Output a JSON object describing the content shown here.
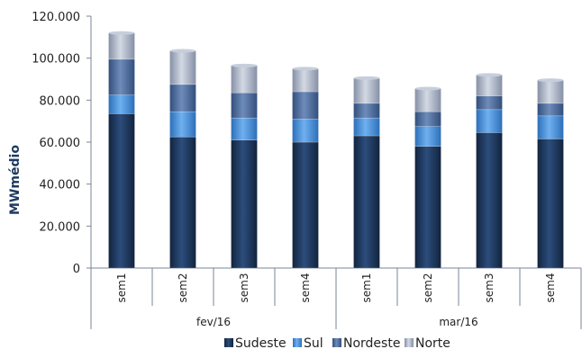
{
  "chart_data": {
    "type": "bar",
    "stacked": true,
    "ylabel": "MWmédio",
    "ylim": [
      0,
      120000
    ],
    "yticks": [
      "0",
      "20.000",
      "40.000",
      "60.000",
      "80.000",
      "100.000",
      "120.000"
    ],
    "ytick_values": [
      0,
      20000,
      40000,
      60000,
      80000,
      100000,
      120000
    ],
    "categories": [
      "sem1",
      "sem2",
      "sem3",
      "sem4",
      "sem1",
      "sem2",
      "sem3",
      "sem4"
    ],
    "groups": [
      {
        "label": "fev/16",
        "count": 4
      },
      {
        "label": "mar/16",
        "count": 4
      }
    ],
    "series": [
      {
        "name": "Sudeste",
        "color": "#1f3a60",
        "values": [
          73500,
          62500,
          61000,
          60000,
          63000,
          58000,
          64500,
          61500
        ]
      },
      {
        "name": "Sul",
        "color": "#4a90d9",
        "values": [
          9000,
          12000,
          10500,
          11000,
          8500,
          9500,
          11000,
          11000
        ]
      },
      {
        "name": "Nordeste",
        "color": "#4f6f9f",
        "values": [
          17000,
          13000,
          12000,
          13000,
          7000,
          7000,
          6500,
          6000
        ]
      },
      {
        "name": "Norte",
        "color": "#a9b3c6",
        "values": [
          12500,
          16000,
          13000,
          11000,
          12000,
          11000,
          10000,
          11000
        ]
      }
    ],
    "legend_position": "bottom",
    "grid": false
  }
}
